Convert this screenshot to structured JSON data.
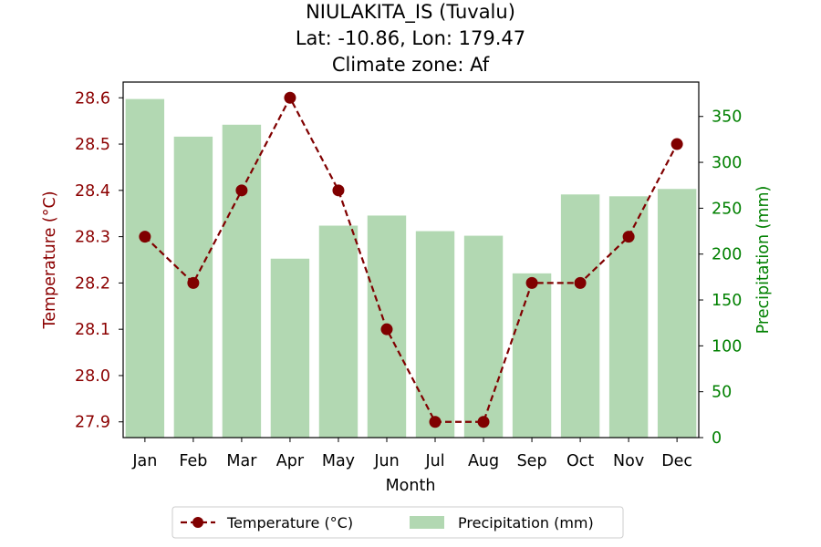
{
  "chart_data": {
    "type": "bar+line",
    "title_lines": [
      "NIULAKITA_IS (Tuvalu)",
      "Lat: -10.86, Lon: 179.47",
      "Climate zone: Af"
    ],
    "categories": [
      "Jan",
      "Feb",
      "Mar",
      "Apr",
      "May",
      "Jun",
      "Jul",
      "Aug",
      "Sep",
      "Oct",
      "Nov",
      "Dec"
    ],
    "xlabel": "Month",
    "series": [
      {
        "name": "Temperature (°C)",
        "type": "line",
        "axis": "left",
        "color": "#800000",
        "values": [
          28.3,
          28.2,
          28.4,
          28.6,
          28.4,
          28.1,
          27.9,
          27.9,
          28.2,
          28.2,
          28.3,
          28.5
        ]
      },
      {
        "name": "Precipitation (mm)",
        "type": "bar",
        "axis": "right",
        "color": "#b2d8b2",
        "values": [
          369,
          328,
          341,
          195,
          231,
          242,
          225,
          220,
          179,
          265,
          263,
          271
        ]
      }
    ],
    "y_left": {
      "label": "Temperature (°C)",
      "min": 27.866,
      "max": 28.634,
      "ticks": [
        "27.9",
        "28.0",
        "28.1",
        "28.2",
        "28.3",
        "28.4",
        "28.5",
        "28.6"
      ],
      "color": "#8b0000"
    },
    "y_right": {
      "label": "Precipitation (mm)",
      "min": 0,
      "max": 387.5,
      "ticks": [
        "0",
        "50",
        "100",
        "150",
        "200",
        "250",
        "300",
        "350"
      ],
      "color": "#008000"
    },
    "legend": {
      "position": "bottom-center"
    },
    "grid": false
  }
}
